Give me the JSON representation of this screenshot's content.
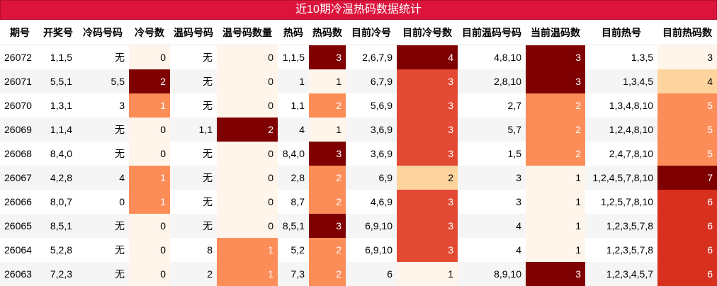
{
  "title": "近10期冷温热码数据统计",
  "columns": [
    "期号",
    "开奖号",
    "冷码号码",
    "冷号数",
    "温码号码",
    "温号码数量",
    "热码",
    "热码数",
    "目前冷号",
    "目前冷号数",
    "目前温码号码",
    "当前温码数",
    "目前热号",
    "目前热码数"
  ],
  "rows": [
    [
      "26072",
      "1,1,5",
      "无",
      "0",
      "无",
      "0",
      "1,1,5",
      "3",
      "2,6,7,9",
      "4",
      "4,8,10",
      "3",
      "1,3,5",
      "3"
    ],
    [
      "26071",
      "5,5,1",
      "5,5",
      "2",
      "无",
      "0",
      "1",
      "1",
      "6,7,9",
      "3",
      "2,8,10",
      "3",
      "1,3,4,5",
      "4"
    ],
    [
      "26070",
      "1,3,1",
      "3",
      "1",
      "无",
      "0",
      "1,1",
      "2",
      "5,6,9",
      "3",
      "2,7",
      "2",
      "1,3,4,8,10",
      "5"
    ],
    [
      "26069",
      "1,1,4",
      "无",
      "0",
      "1,1",
      "2",
      "4",
      "1",
      "3,6,9",
      "3",
      "5,7",
      "2",
      "1,2,4,8,10",
      "5"
    ],
    [
      "26068",
      "8,4,0",
      "无",
      "0",
      "无",
      "0",
      "8,4,0",
      "3",
      "3,6,9",
      "3",
      "1,5",
      "2",
      "2,4,7,8,10",
      "5"
    ],
    [
      "26067",
      "4,2,8",
      "4",
      "1",
      "无",
      "0",
      "2,8",
      "2",
      "6,9",
      "2",
      "3",
      "1",
      "1,2,4,5,7,8,10",
      "7"
    ],
    [
      "26066",
      "8,0,7",
      "0",
      "1",
      "无",
      "0",
      "8,7",
      "2",
      "4,6,9",
      "3",
      "3",
      "1",
      "1,2,5,7,8,10",
      "6"
    ],
    [
      "26065",
      "8,5,1",
      "无",
      "0",
      "无",
      "0",
      "8,5,1",
      "3",
      "6,9,10",
      "3",
      "4",
      "1",
      "1,2,3,5,7,8",
      "6"
    ],
    [
      "26064",
      "5,2,8",
      "无",
      "0",
      "8",
      "1",
      "5,2",
      "2",
      "6,9,10",
      "3",
      "4",
      "1",
      "1,2,3,5,7,8",
      "6"
    ],
    [
      "26063",
      "7,2,3",
      "无",
      "0",
      "2",
      "1",
      "7,3",
      "2",
      "6",
      "1",
      "8,9,10",
      "3",
      "1,2,3,4,5,7",
      "6"
    ]
  ],
  "heat": {
    "col3": [
      "h0",
      "h5",
      "h2",
      "h0",
      "h0",
      "h2",
      "h2",
      "h0",
      "h0",
      "h0"
    ],
    "col5": [
      "h0",
      "h0",
      "h0",
      "h5",
      "h0",
      "h0",
      "h0",
      "h0",
      "h2",
      "h2"
    ],
    "col7": [
      "h5",
      "h0",
      "h2",
      "h0",
      "h5",
      "h2",
      "h2",
      "h5",
      "h2",
      "h2"
    ],
    "col9": [
      "h5",
      "h3",
      "h3",
      "h3",
      "h3",
      "h1",
      "h3",
      "h3",
      "h3",
      "h0"
    ],
    "col11": [
      "h5",
      "h5",
      "h2",
      "h2",
      "h2",
      "h0",
      "h0",
      "h0",
      "h0",
      "h5"
    ],
    "col13": [
      "h0",
      "h1",
      "h2",
      "h2",
      "h2",
      "h5",
      "h4",
      "h4",
      "h4",
      "h4"
    ]
  }
}
